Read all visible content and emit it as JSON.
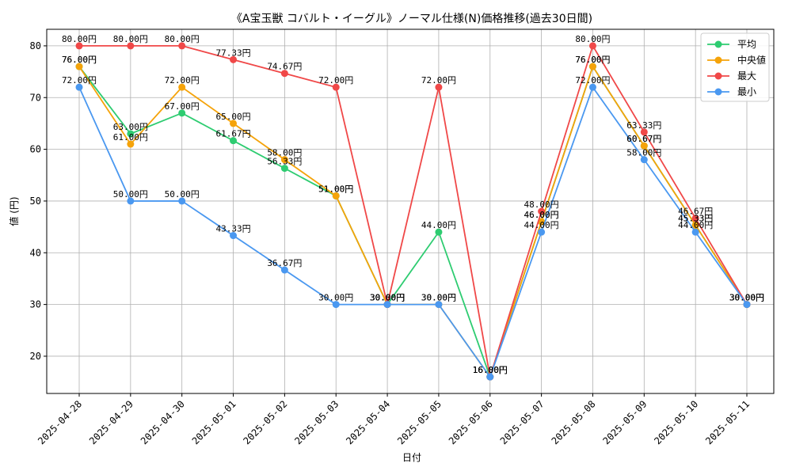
{
  "chart_data": {
    "type": "line",
    "title": "《A宝玉獣 コバルト・イーグル》ノーマル仕様(N)価格推移(過去30日間)",
    "xlabel": "日付",
    "ylabel": "値 (円)",
    "ylim": [
      12.8,
      83.2
    ],
    "yticks": [
      20,
      30,
      40,
      50,
      60,
      70,
      80
    ],
    "grid": true,
    "legend_position": "top-right",
    "value_suffix": "円",
    "categories": [
      "2025-04-28",
      "2025-04-29",
      "2025-04-30",
      "2025-05-01",
      "2025-05-02",
      "2025-05-03",
      "2025-05-04",
      "2025-05-05",
      "2025-05-06",
      "2025-05-07",
      "2025-05-08",
      "2025-05-09",
      "2025-05-10",
      "2025-05-11"
    ],
    "series": [
      {
        "name": "平均",
        "color": "#2ecc71",
        "values": [
          76.0,
          63.0,
          67.0,
          61.67,
          56.33,
          51.0,
          30.0,
          44.0,
          16.0,
          46.0,
          76.0,
          60.67,
          45.33,
          30.0
        ]
      },
      {
        "name": "中央値",
        "color": "#f5a30a",
        "values": [
          76.0,
          61.0,
          72.0,
          65.0,
          58.0,
          51.0,
          30.0,
          30.0,
          16.0,
          46.0,
          76.0,
          60.67,
          45.33,
          30.0
        ]
      },
      {
        "name": "最大",
        "color": "#f04848",
        "values": [
          80.0,
          80.0,
          80.0,
          77.33,
          74.67,
          72.0,
          30.0,
          72.0,
          16.0,
          48.0,
          80.0,
          63.33,
          46.67,
          30.0
        ]
      },
      {
        "name": "最小",
        "color": "#4a98f0",
        "values": [
          72.0,
          50.0,
          50.0,
          43.33,
          36.67,
          30.0,
          30.0,
          30.0,
          16.0,
          44.0,
          72.0,
          58.0,
          44.0,
          30.0
        ]
      }
    ]
  }
}
